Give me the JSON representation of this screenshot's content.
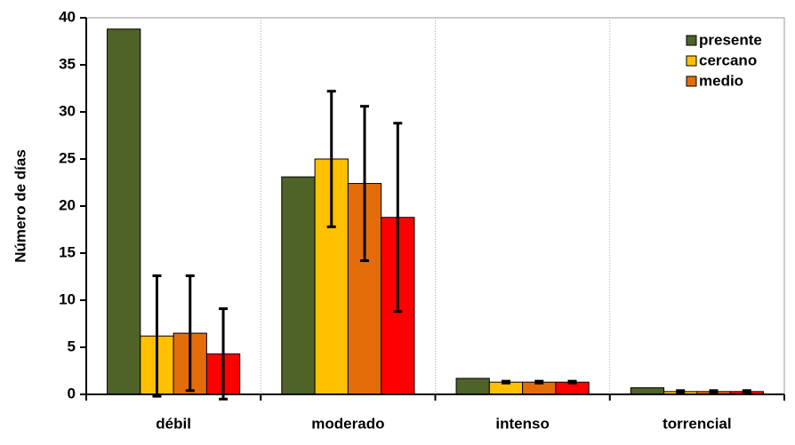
{
  "chart_data": {
    "type": "bar",
    "y_label": "Número de días",
    "categories": [
      "débil",
      "moderado",
      "intenso",
      "torrencial"
    ],
    "series": [
      {
        "name": "presente",
        "color": "#4f6228",
        "values": [
          38.8,
          23.1,
          1.7,
          0.7
        ]
      },
      {
        "name": "cercano",
        "color": "#ffc000",
        "values": [
          6.2,
          25.0,
          1.3,
          0.3
        ],
        "errors": [
          6.4,
          7.2,
          0.1,
          0.1
        ]
      },
      {
        "name": "medio",
        "color": "#e36c09",
        "values": [
          6.5,
          22.4,
          1.3,
          0.3
        ],
        "errors": [
          6.1,
          8.2,
          0.1,
          0.1
        ]
      },
      {
        "color": "#ff0000",
        "values": [
          4.3,
          18.8,
          1.3,
          0.3
        ],
        "errors": [
          4.8,
          10.0,
          0.1,
          0.1
        ]
      }
    ],
    "ylim": [
      0,
      40
    ],
    "yticks": [
      0,
      5,
      10,
      15,
      20,
      25,
      30,
      35,
      40
    ],
    "grid": true,
    "legend": "upper-right"
  }
}
